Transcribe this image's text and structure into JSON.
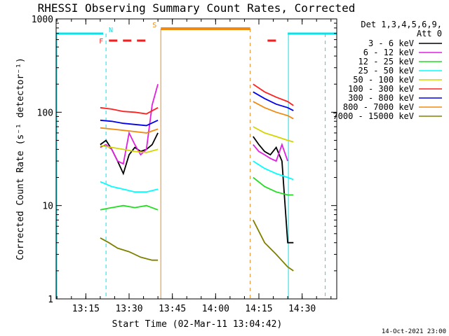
{
  "chart_data": {
    "type": "line",
    "title": "RHESSI Observing Summary Count Rates, Corrected",
    "xlabel": "Start Time (02-Mar-11 13:04:42)",
    "ylabel": "Corrected Count Rate (s⁻¹ detector⁻¹)",
    "y_scale": "log",
    "ylim": [
      1,
      1000
    ],
    "xlim": [
      "13:04:42",
      "14:42:00"
    ],
    "x_tick_labels": [
      "13:15",
      "13:30",
      "13:45",
      "14:00",
      "14:15",
      "14:30"
    ],
    "y_tick_labels": [
      "1",
      "10",
      "100",
      "1000"
    ],
    "footer_date": "14-Oct-2021 23:00",
    "legend": {
      "placement": "right-outside",
      "header": [
        "Det 1,3,4,5,6,9,",
        "Att 0"
      ]
    },
    "flags": [
      {
        "label": "N",
        "color": "#00e5ee",
        "style": "solid",
        "intervals": [
          [
            "13:04:42",
            "13:21:00"
          ],
          [
            "14:25:00",
            "14:42:00"
          ]
        ],
        "boundaries_dashed": [
          "13:22:00",
          "14:38:00"
        ]
      },
      {
        "label": "S",
        "color": "#f08a10",
        "style": "solid",
        "intervals": [
          [
            "13:41:00",
            "14:12:00"
          ]
        ],
        "boundaries_dashed": [
          "14:12:00"
        ]
      },
      {
        "label": "F",
        "color": "#ff1a1a",
        "style": "dashed",
        "intervals": [
          [
            "13:23:00",
            "13:36:00"
          ],
          [
            "14:18:00",
            "14:22:00"
          ]
        ]
      }
    ],
    "series": [
      {
        "name": "3 - 6 keV",
        "color": "#000000",
        "points": [
          [
            "13:20",
            45
          ],
          [
            "13:22",
            50
          ],
          [
            "13:24",
            40
          ],
          [
            "13:26",
            30
          ],
          [
            "13:28",
            22
          ],
          [
            "13:30",
            35
          ],
          [
            "13:32",
            42
          ],
          [
            "13:34",
            38
          ],
          [
            "13:36",
            40
          ],
          [
            "13:38",
            45
          ],
          [
            "13:40",
            60
          ],
          [
            "14:13",
            55
          ],
          [
            "14:15",
            45
          ],
          [
            "14:17",
            38
          ],
          [
            "14:19",
            35
          ],
          [
            "14:21",
            42
          ],
          [
            "14:23",
            30
          ],
          [
            "14:25",
            4
          ],
          [
            "14:27",
            4
          ]
        ]
      },
      {
        "name": "6 - 12 keV",
        "color": "#e020e0",
        "points": [
          [
            "13:20",
            42
          ],
          [
            "13:22",
            45
          ],
          [
            "13:24",
            40
          ],
          [
            "13:26",
            30
          ],
          [
            "13:28",
            28
          ],
          [
            "13:30",
            60
          ],
          [
            "13:32",
            45
          ],
          [
            "13:34",
            35
          ],
          [
            "13:36",
            40
          ],
          [
            "13:38",
            120
          ],
          [
            "13:40",
            200
          ],
          [
            "14:13",
            45
          ],
          [
            "14:15",
            38
          ],
          [
            "14:17",
            35
          ],
          [
            "14:19",
            32
          ],
          [
            "14:21",
            30
          ],
          [
            "14:23",
            45
          ],
          [
            "14:25",
            30
          ]
        ]
      },
      {
        "name": "12 - 25 keV",
        "color": "#22dd22",
        "points": [
          [
            "13:20",
            9
          ],
          [
            "13:24",
            9.5
          ],
          [
            "13:28",
            10
          ],
          [
            "13:32",
            9.5
          ],
          [
            "13:36",
            10
          ],
          [
            "13:40",
            9
          ],
          [
            "14:13",
            20
          ],
          [
            "14:17",
            16
          ],
          [
            "14:21",
            14
          ],
          [
            "14:25",
            13
          ],
          [
            "14:27",
            13
          ]
        ]
      },
      {
        "name": "25 - 50 keV",
        "color": "#00ffff",
        "points": [
          [
            "13:20",
            18
          ],
          [
            "13:24",
            16
          ],
          [
            "13:28",
            15
          ],
          [
            "13:32",
            14
          ],
          [
            "13:36",
            14
          ],
          [
            "13:40",
            15
          ],
          [
            "14:13",
            30
          ],
          [
            "14:17",
            25
          ],
          [
            "14:21",
            22
          ],
          [
            "14:25",
            20
          ],
          [
            "14:27",
            19
          ]
        ]
      },
      {
        "name": "50 - 100 keV",
        "color": "#d4d400",
        "points": [
          [
            "13:20",
            44
          ],
          [
            "13:24",
            42
          ],
          [
            "13:28",
            40
          ],
          [
            "13:32",
            38
          ],
          [
            "13:36",
            37
          ],
          [
            "13:40",
            40
          ],
          [
            "14:13",
            70
          ],
          [
            "14:17",
            60
          ],
          [
            "14:21",
            55
          ],
          [
            "14:25",
            50
          ],
          [
            "14:27",
            48
          ]
        ]
      },
      {
        "name": "100 - 300 keV",
        "color": "#ff2020",
        "points": [
          [
            "13:20",
            112
          ],
          [
            "13:24",
            108
          ],
          [
            "13:28",
            102
          ],
          [
            "13:32",
            100
          ],
          [
            "13:36",
            96
          ],
          [
            "13:40",
            112
          ],
          [
            "14:13",
            200
          ],
          [
            "14:17",
            165
          ],
          [
            "14:21",
            145
          ],
          [
            "14:25",
            130
          ],
          [
            "14:27",
            118
          ]
        ]
      },
      {
        "name": "300 - 800 keV",
        "color": "#0000ee",
        "points": [
          [
            "13:20",
            82
          ],
          [
            "13:24",
            80
          ],
          [
            "13:28",
            76
          ],
          [
            "13:32",
            74
          ],
          [
            "13:36",
            72
          ],
          [
            "13:40",
            82
          ],
          [
            "14:13",
            165
          ],
          [
            "14:17",
            140
          ],
          [
            "14:21",
            122
          ],
          [
            "14:25",
            112
          ],
          [
            "14:27",
            104
          ]
        ]
      },
      {
        "name": "800 - 7000 keV",
        "color": "#f08a10",
        "points": [
          [
            "13:20",
            68
          ],
          [
            "13:24",
            66
          ],
          [
            "13:28",
            64
          ],
          [
            "13:32",
            62
          ],
          [
            "13:36",
            60
          ],
          [
            "13:40",
            66
          ],
          [
            "14:13",
            130
          ],
          [
            "14:17",
            112
          ],
          [
            "14:21",
            100
          ],
          [
            "14:25",
            92
          ],
          [
            "14:27",
            85
          ]
        ]
      },
      {
        "name": "7000 - 15000 keV",
        "color": "#808000",
        "points": [
          [
            "13:20",
            4.5
          ],
          [
            "13:23",
            4
          ],
          [
            "13:26",
            3.5
          ],
          [
            "13:30",
            3.2
          ],
          [
            "13:34",
            2.8
          ],
          [
            "13:38",
            2.6
          ],
          [
            "13:40",
            2.6
          ],
          [
            "14:13",
            7
          ],
          [
            "14:17",
            4
          ],
          [
            "14:21",
            3
          ],
          [
            "14:25",
            2.2
          ],
          [
            "14:27",
            2
          ]
        ]
      }
    ]
  }
}
